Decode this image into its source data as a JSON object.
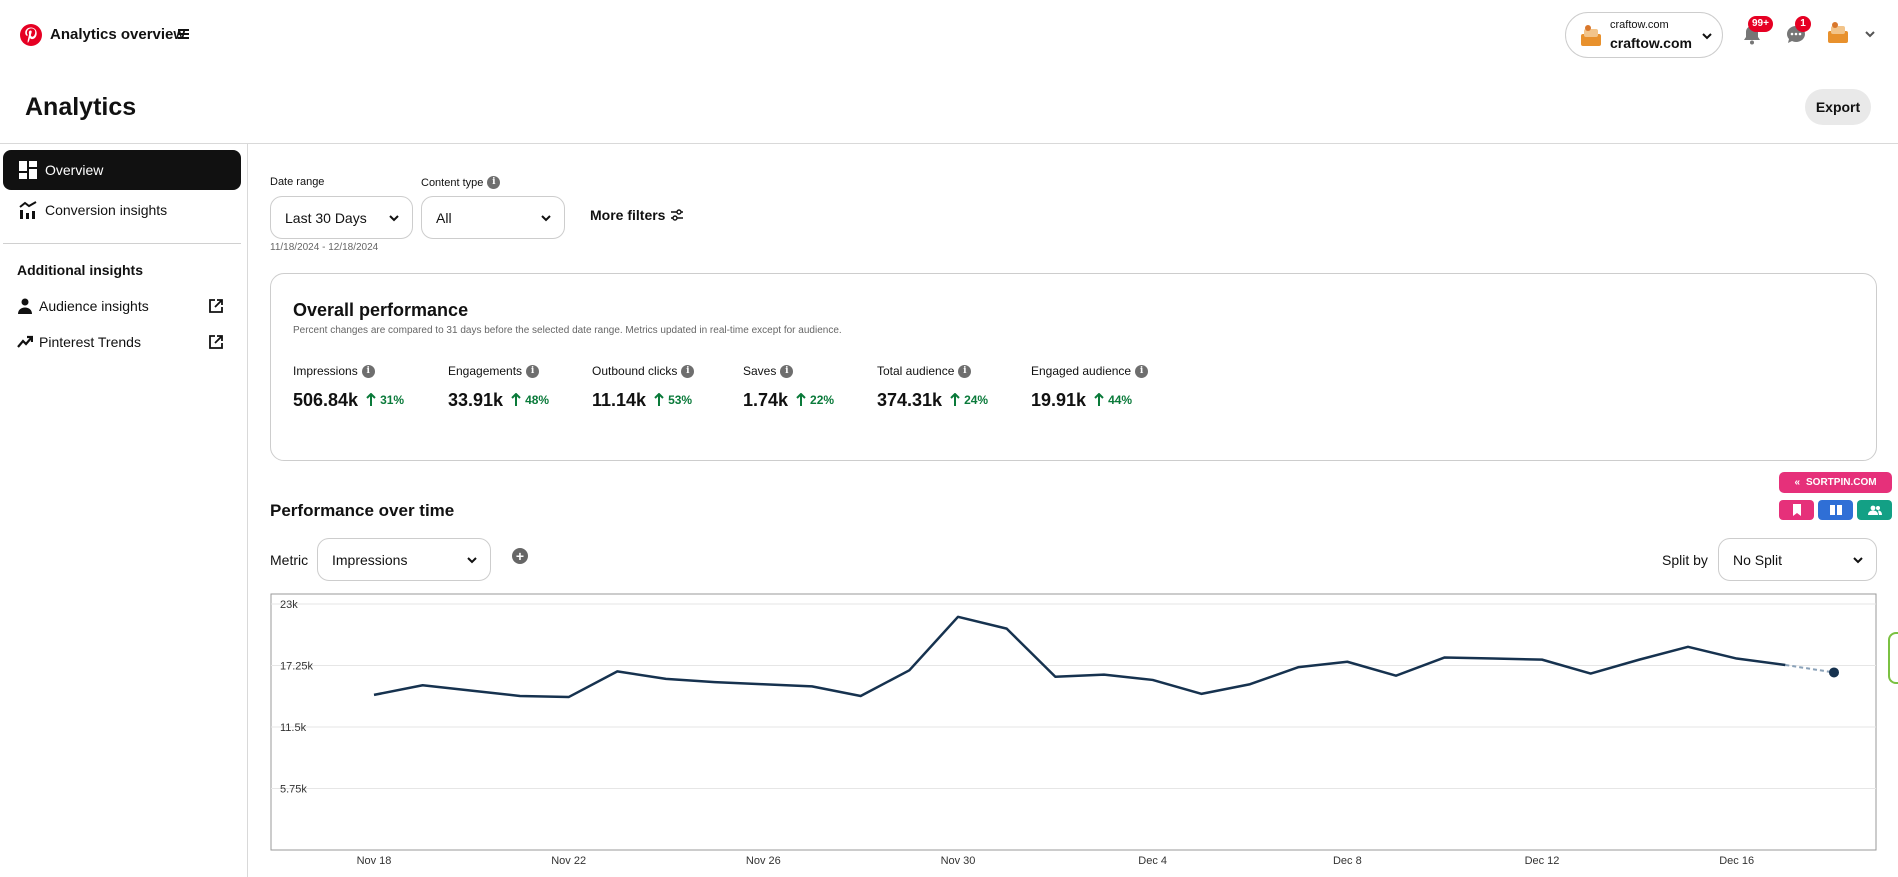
{
  "header": {
    "app_title": "Analytics overview",
    "page_title": "Analytics",
    "export_label": "Export",
    "account": {
      "small": "craftow.com",
      "name": "craftow.com"
    },
    "notifications_badge": "99+",
    "messages_badge": "1"
  },
  "sidebar": {
    "items": [
      {
        "label": "Overview",
        "icon": "dashboard-icon",
        "active": true
      },
      {
        "label": "Conversion insights",
        "icon": "chart-icon",
        "active": false
      }
    ],
    "additional_heading": "Additional insights",
    "additional_items": [
      {
        "label": "Audience insights",
        "icon": "person-icon"
      },
      {
        "label": "Pinterest Trends",
        "icon": "trend-icon"
      }
    ]
  },
  "filters": {
    "date_range_label": "Date range",
    "date_range_value": "Last 30 Days",
    "date_range_sub": "11/18/2024 - 12/18/2024",
    "content_type_label": "Content type",
    "content_type_value": "All",
    "more_filters_label": "More filters"
  },
  "overall": {
    "title": "Overall performance",
    "subtitle": "Percent changes are compared to 31 days before the selected date range. Metrics updated in real-time except for audience.",
    "metrics": [
      {
        "label": "Impressions",
        "value": "506.84k",
        "change": "31%"
      },
      {
        "label": "Engagements",
        "value": "33.91k",
        "change": "48%"
      },
      {
        "label": "Outbound clicks",
        "value": "11.14k",
        "change": "53%"
      },
      {
        "label": "Saves",
        "value": "1.74k",
        "change": "22%"
      },
      {
        "label": "Total audience",
        "value": "374.31k",
        "change": "24%"
      },
      {
        "label": "Engaged audience",
        "value": "19.91k",
        "change": "44%"
      }
    ]
  },
  "performance": {
    "title": "Performance over time",
    "metric_label": "Metric",
    "metric_value": "Impressions",
    "split_label": "Split by",
    "split_value": "No Split"
  },
  "extension": {
    "label": "SORTPIN.COM",
    "colors": [
      "#e6307a",
      "#2f6fd6",
      "#13a085"
    ]
  },
  "colors": {
    "brand": "#e60023",
    "line": "#16324f",
    "positive": "#0a7a3a"
  },
  "chart_data": {
    "type": "line",
    "ylim": [
      0,
      23000
    ],
    "y_ticks": [
      "23k",
      "17.25k",
      "11.5k",
      "5.75k"
    ],
    "y_tick_values": [
      23000,
      17250,
      11500,
      5750
    ],
    "x_tick_labels": [
      "Nov 18",
      "Nov 22",
      "Nov 26",
      "Nov 30",
      "Dec 4",
      "Dec 8",
      "Dec 12",
      "Dec 16"
    ],
    "x": [
      "Nov 18",
      "Nov 19",
      "Nov 20",
      "Nov 21",
      "Nov 22",
      "Nov 23",
      "Nov 24",
      "Nov 25",
      "Nov 26",
      "Nov 27",
      "Nov 28",
      "Nov 29",
      "Nov 30",
      "Dec 1",
      "Dec 2",
      "Dec 3",
      "Dec 4",
      "Dec 5",
      "Dec 6",
      "Dec 7",
      "Dec 8",
      "Dec 9",
      "Dec 10",
      "Dec 11",
      "Dec 12",
      "Dec 13",
      "Dec 14",
      "Dec 15",
      "Dec 16",
      "Dec 17",
      "Dec 18"
    ],
    "series": [
      {
        "values": [
          14500,
          15400,
          14900,
          14400,
          14300,
          16700,
          16000,
          15700,
          15500,
          15300,
          14400,
          16800,
          21800,
          20700,
          16200,
          16400,
          15900,
          14600,
          15500,
          17100,
          17600,
          16300,
          18000,
          17900,
          17800,
          16500,
          17800,
          19000,
          17900,
          17300,
          16600
        ]
      }
    ]
  }
}
